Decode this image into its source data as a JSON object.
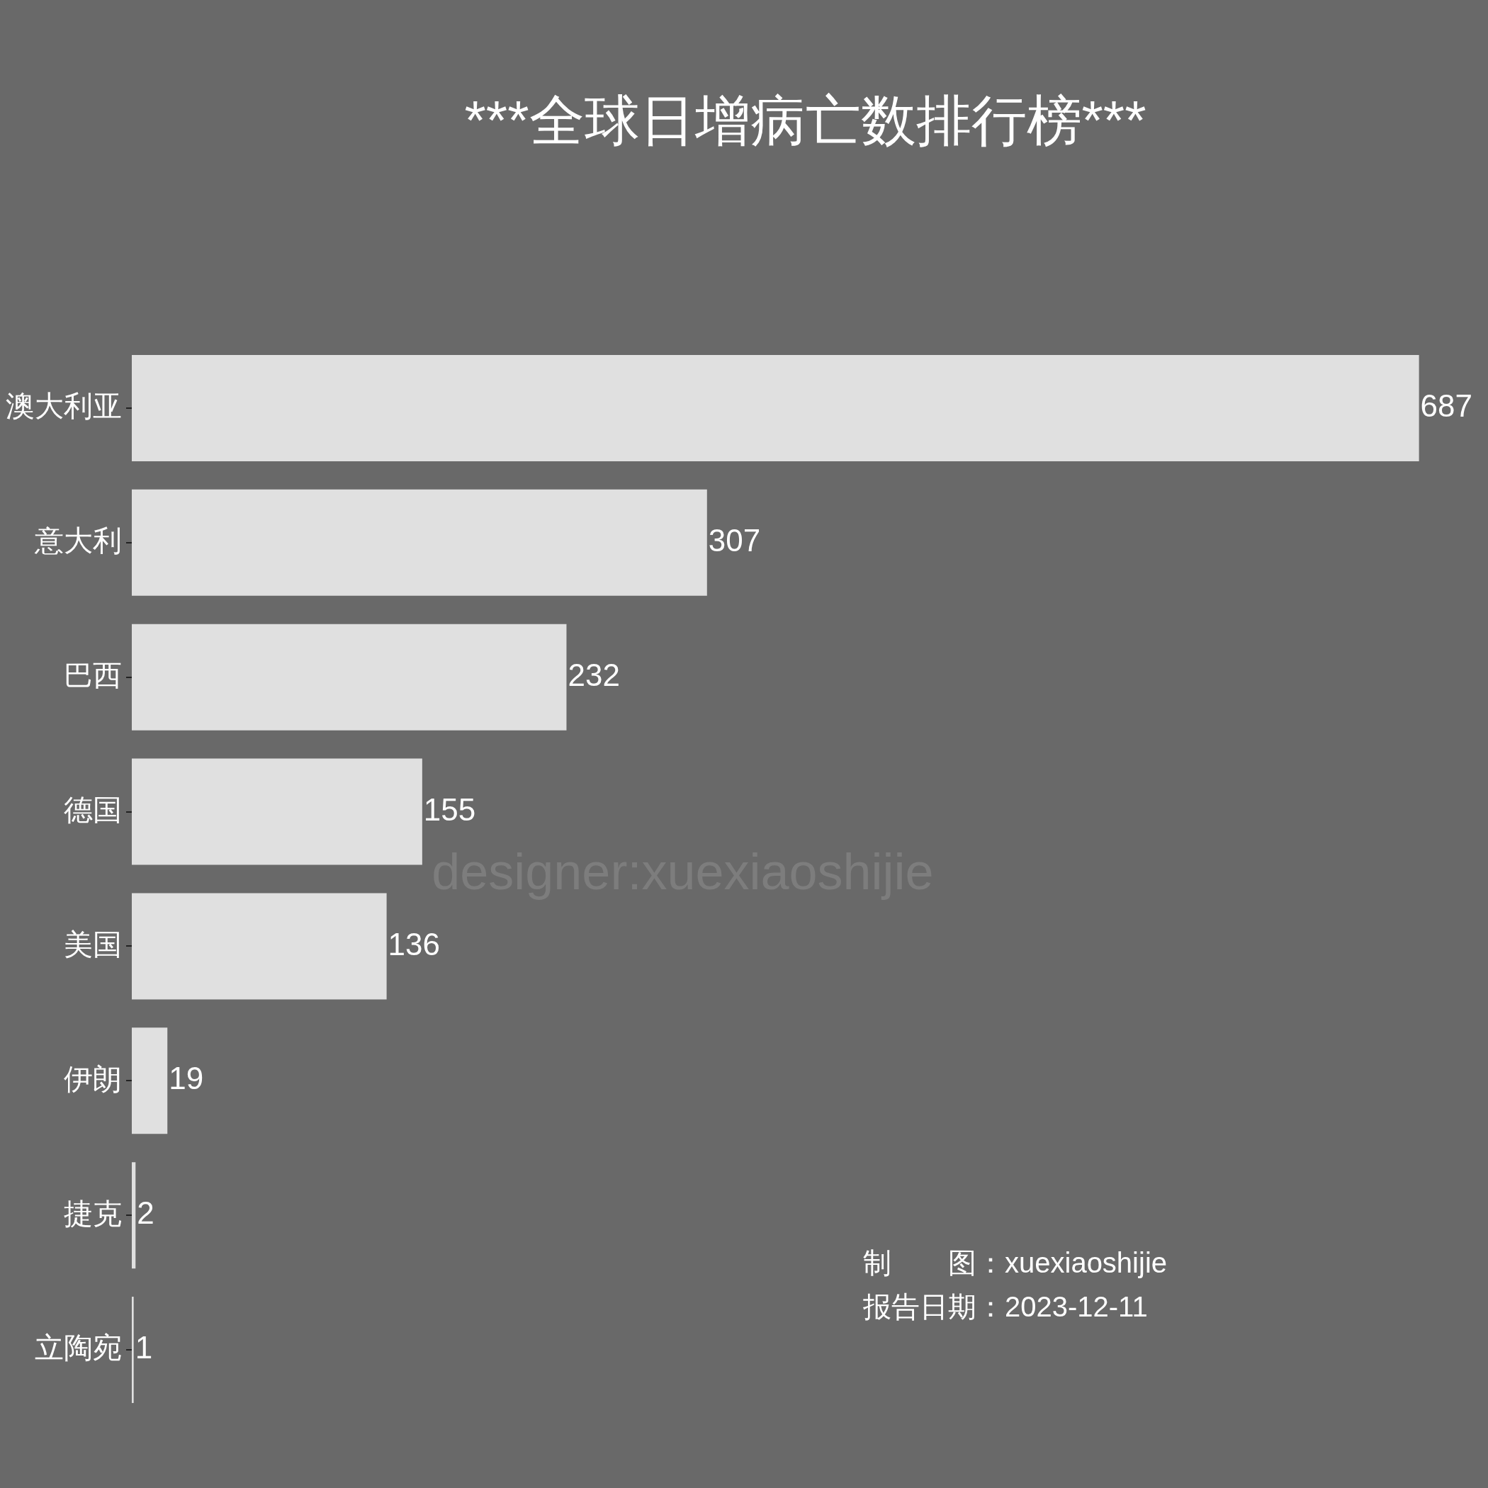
{
  "chart_data": {
    "type": "bar",
    "orientation": "horizontal",
    "title": "***全球日增病亡数排行榜***",
    "categories": [
      "澳大利亚",
      "意大利",
      "巴西",
      "德国",
      "美国",
      "伊朗",
      "捷克",
      "立陶宛"
    ],
    "values": [
      687,
      307,
      232,
      155,
      136,
      19,
      2,
      1
    ],
    "color": "#e0e0e0",
    "data_labels": true,
    "tick_labels": "y",
    "annotations": [
      "designer:xuexiaoshijie",
      "制　　图：xuexiaoshijie",
      "报告日期：2023-12-11"
    ]
  }
}
